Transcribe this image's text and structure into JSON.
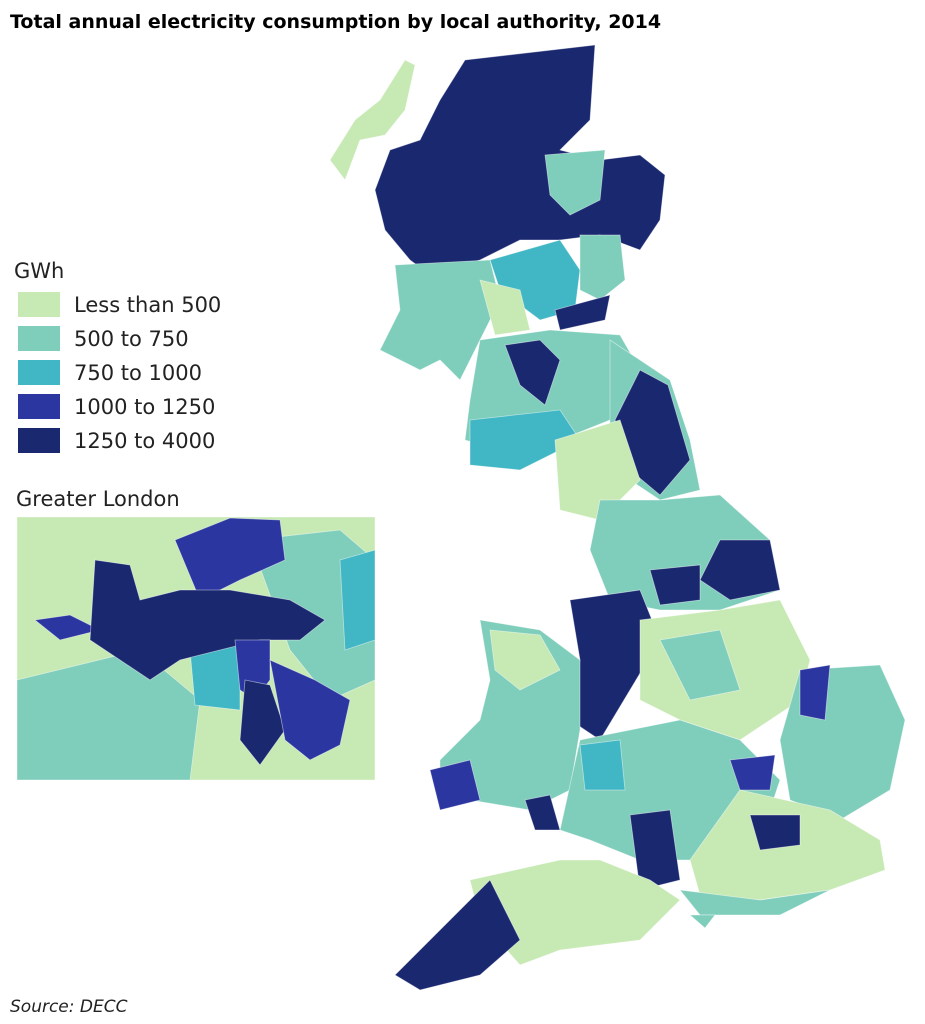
{
  "title": "Total annual electricity consumption by local authority, 2014",
  "legend": {
    "title": "GWh",
    "items": [
      {
        "label": "Less than 500",
        "color": "#c7e9b4"
      },
      {
        "label": "500 to 750",
        "color": "#7fcdbb"
      },
      {
        "label": "750 to 1000",
        "color": "#41b6c4"
      },
      {
        "label": "1000 to 1250",
        "color": "#2c36a0"
      },
      {
        "label": "1250 to 4000",
        "color": "#1a2870"
      }
    ]
  },
  "inset": {
    "title": "Greater London"
  },
  "source": "Source: DECC"
}
